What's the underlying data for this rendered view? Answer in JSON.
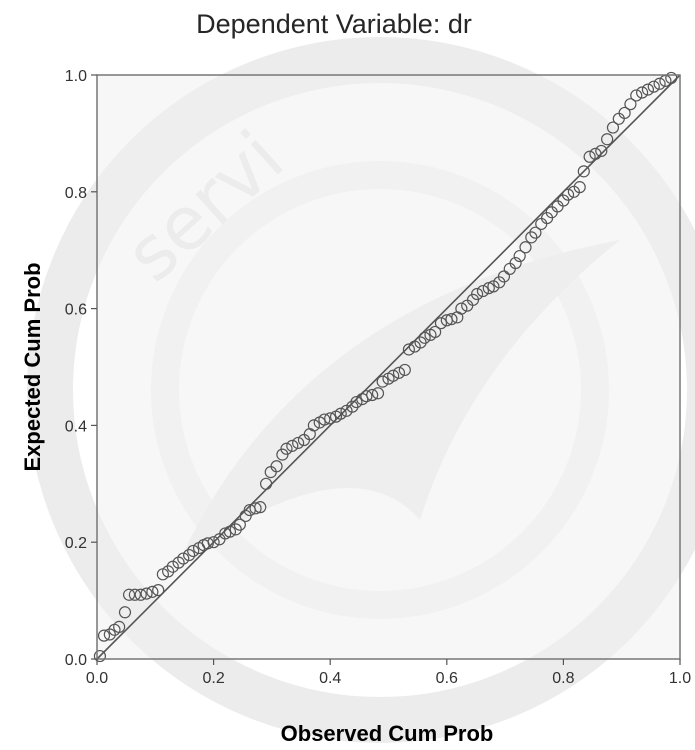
{
  "chart_data": {
    "type": "scatter",
    "title": "Dependent Variable: dr",
    "xlabel": "Observed Cum Prob",
    "ylabel": "Expected Cum Prob",
    "xlim": [
      0.0,
      1.0
    ],
    "ylim": [
      0.0,
      1.0
    ],
    "x_ticks": [
      "0.0",
      "0.2",
      "0.4",
      "0.6",
      "0.8",
      "1.0"
    ],
    "y_ticks": [
      "0.0",
      "0.2",
      "0.4",
      "0.6",
      "0.8",
      "1.0"
    ],
    "x_tick_values": [
      0,
      0.2,
      0.4,
      0.6,
      0.8,
      1.0
    ],
    "y_tick_values": [
      0,
      0.2,
      0.4,
      0.6,
      0.8,
      1.0
    ],
    "grid": false,
    "reference_line": {
      "from": [
        0,
        0
      ],
      "to": [
        1,
        1
      ]
    },
    "points": [
      [
        0.005,
        0.005
      ],
      [
        0.012,
        0.04
      ],
      [
        0.022,
        0.042
      ],
      [
        0.03,
        0.05
      ],
      [
        0.038,
        0.055
      ],
      [
        0.048,
        0.08
      ],
      [
        0.055,
        0.11
      ],
      [
        0.065,
        0.11
      ],
      [
        0.075,
        0.11
      ],
      [
        0.085,
        0.112
      ],
      [
        0.095,
        0.115
      ],
      [
        0.105,
        0.118
      ],
      [
        0.113,
        0.145
      ],
      [
        0.122,
        0.15
      ],
      [
        0.13,
        0.158
      ],
      [
        0.14,
        0.165
      ],
      [
        0.148,
        0.172
      ],
      [
        0.158,
        0.178
      ],
      [
        0.165,
        0.185
      ],
      [
        0.175,
        0.19
      ],
      [
        0.183,
        0.195
      ],
      [
        0.19,
        0.198
      ],
      [
        0.2,
        0.2
      ],
      [
        0.21,
        0.205
      ],
      [
        0.22,
        0.215
      ],
      [
        0.228,
        0.218
      ],
      [
        0.238,
        0.222
      ],
      [
        0.245,
        0.23
      ],
      [
        0.255,
        0.245
      ],
      [
        0.262,
        0.255
      ],
      [
        0.272,
        0.258
      ],
      [
        0.28,
        0.26
      ],
      [
        0.29,
        0.3
      ],
      [
        0.298,
        0.32
      ],
      [
        0.308,
        0.33
      ],
      [
        0.318,
        0.35
      ],
      [
        0.325,
        0.36
      ],
      [
        0.335,
        0.365
      ],
      [
        0.345,
        0.37
      ],
      [
        0.355,
        0.375
      ],
      [
        0.365,
        0.385
      ],
      [
        0.372,
        0.4
      ],
      [
        0.382,
        0.405
      ],
      [
        0.39,
        0.41
      ],
      [
        0.4,
        0.412
      ],
      [
        0.41,
        0.415
      ],
      [
        0.418,
        0.42
      ],
      [
        0.428,
        0.425
      ],
      [
        0.438,
        0.432
      ],
      [
        0.445,
        0.44
      ],
      [
        0.455,
        0.445
      ],
      [
        0.462,
        0.45
      ],
      [
        0.472,
        0.452
      ],
      [
        0.482,
        0.455
      ],
      [
        0.49,
        0.475
      ],
      [
        0.5,
        0.48
      ],
      [
        0.508,
        0.485
      ],
      [
        0.518,
        0.49
      ],
      [
        0.528,
        0.495
      ],
      [
        0.535,
        0.53
      ],
      [
        0.545,
        0.535
      ],
      [
        0.555,
        0.542
      ],
      [
        0.562,
        0.55
      ],
      [
        0.572,
        0.555
      ],
      [
        0.58,
        0.56
      ],
      [
        0.59,
        0.575
      ],
      [
        0.6,
        0.58
      ],
      [
        0.608,
        0.582
      ],
      [
        0.618,
        0.585
      ],
      [
        0.625,
        0.6
      ],
      [
        0.635,
        0.605
      ],
      [
        0.645,
        0.615
      ],
      [
        0.652,
        0.625
      ],
      [
        0.662,
        0.63
      ],
      [
        0.672,
        0.635
      ],
      [
        0.68,
        0.638
      ],
      [
        0.69,
        0.645
      ],
      [
        0.698,
        0.655
      ],
      [
        0.708,
        0.668
      ],
      [
        0.718,
        0.678
      ],
      [
        0.725,
        0.69
      ],
      [
        0.735,
        0.705
      ],
      [
        0.745,
        0.722
      ],
      [
        0.752,
        0.73
      ],
      [
        0.762,
        0.745
      ],
      [
        0.772,
        0.755
      ],
      [
        0.78,
        0.765
      ],
      [
        0.79,
        0.775
      ],
      [
        0.8,
        0.785
      ],
      [
        0.808,
        0.795
      ],
      [
        0.818,
        0.8
      ],
      [
        0.828,
        0.808
      ],
      [
        0.835,
        0.835
      ],
      [
        0.845,
        0.86
      ],
      [
        0.855,
        0.865
      ],
      [
        0.865,
        0.87
      ],
      [
        0.875,
        0.89
      ],
      [
        0.885,
        0.91
      ],
      [
        0.895,
        0.925
      ],
      [
        0.905,
        0.935
      ],
      [
        0.915,
        0.95
      ],
      [
        0.925,
        0.965
      ],
      [
        0.935,
        0.97
      ],
      [
        0.945,
        0.975
      ],
      [
        0.955,
        0.98
      ],
      [
        0.965,
        0.985
      ],
      [
        0.975,
        0.99
      ],
      [
        0.985,
        0.995
      ]
    ]
  },
  "watermark": {
    "text": "servi",
    "color": "#e6e6e6"
  },
  "colors": {
    "frame": "#777777",
    "reference_line": "#555555",
    "marker_stroke": "#555555",
    "plot_background": "#f0f0f0"
  }
}
